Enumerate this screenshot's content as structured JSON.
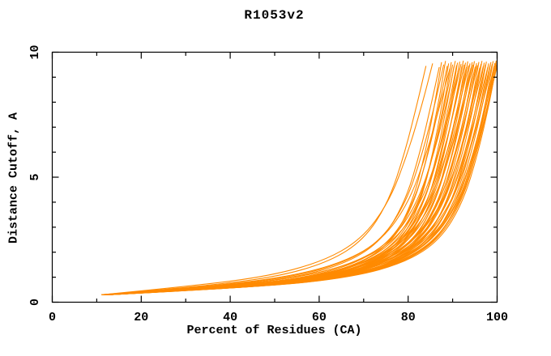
{
  "chart_data": {
    "type": "line",
    "title": "R1053v2",
    "xlabel": "Percent of Residues (CA)",
    "ylabel": "Distance Cutoff, A",
    "xlim": [
      0,
      100
    ],
    "ylim": [
      0,
      10
    ],
    "grid": false,
    "legend": "none",
    "frame_style": "box-with-inward-ticks",
    "x_major_ticks": [
      0,
      20,
      40,
      60,
      80,
      100
    ],
    "x_tick_labels": [
      "0",
      "20",
      "40",
      "60",
      "80",
      "100"
    ],
    "x_minor_ticks": [
      10,
      30,
      50,
      70,
      90
    ],
    "y_major_ticks": [
      0,
      5,
      10
    ],
    "y_tick_labels": [
      "0",
      "5",
      "10"
    ],
    "y_minor_ticks": [
      1,
      2,
      3,
      4,
      6,
      7,
      8,
      9
    ],
    "series_color": "#ff8a00",
    "series_description": "ensemble of ~54 unlabeled model curves: percent of CA residues under a distance cutoff; each starts near (11,0.3), stays below ~1.5 A until 60-85%, then rises steeply to ~9.5 A between 84% and 100%",
    "curve_format": [
      "x_start_percent",
      "x_end_percent",
      "y_top_cutoff_A",
      "shape_exponent"
    ],
    "curve_levels_y": [
      0.3,
      0.6,
      1.0,
      1.6,
      2.5,
      4.0,
      6.0,
      8.0
    ],
    "curve_level_fractions": [
      0.0,
      0.38,
      0.62,
      0.76,
      0.85,
      0.91,
      0.95,
      0.98
    ],
    "curves": [
      [
        11.0,
        84.0,
        9.45,
        1.3
      ],
      [
        11.3,
        85.5,
        9.55,
        1.5
      ],
      [
        12.0,
        87.0,
        9.4,
        1.15
      ],
      [
        11.6,
        87.5,
        9.6,
        0.95
      ],
      [
        12.3,
        88.0,
        9.5,
        1.25
      ],
      [
        11.1,
        88.4,
        9.65,
        1.0
      ],
      [
        12.8,
        88.8,
        9.45,
        1.1
      ],
      [
        11.9,
        89.1,
        9.55,
        0.9
      ],
      [
        12.5,
        89.4,
        9.35,
        1.35
      ],
      [
        11.4,
        89.7,
        9.6,
        1.0
      ],
      [
        12.1,
        90.0,
        9.5,
        1.08
      ],
      [
        13.0,
        90.3,
        9.42,
        0.95
      ],
      [
        11.7,
        90.6,
        9.65,
        1.2
      ],
      [
        12.4,
        90.9,
        9.48,
        1.02
      ],
      [
        11.2,
        91.1,
        9.58,
        0.92
      ],
      [
        12.9,
        91.4,
        9.38,
        1.12
      ],
      [
        11.8,
        91.6,
        9.62,
        1.0
      ],
      [
        12.2,
        91.9,
        9.52,
        1.25
      ],
      [
        13.2,
        92.1,
        9.44,
        0.97
      ],
      [
        11.5,
        92.4,
        9.66,
        1.05
      ],
      [
        12.6,
        92.6,
        9.5,
        1.15
      ],
      [
        11.9,
        92.9,
        9.58,
        0.93
      ],
      [
        12.3,
        93.1,
        9.4,
        1.06
      ],
      [
        13.1,
        93.4,
        9.63,
        1.0
      ],
      [
        11.6,
        93.6,
        9.47,
        1.18
      ],
      [
        12.7,
        93.9,
        9.55,
        0.95
      ],
      [
        12.0,
        94.1,
        9.36,
        1.1
      ],
      [
        11.3,
        94.4,
        9.6,
        1.02
      ],
      [
        12.8,
        94.6,
        9.5,
        1.22
      ],
      [
        12.2,
        94.9,
        9.64,
        0.98
      ],
      [
        13.0,
        95.1,
        9.42,
        1.08
      ],
      [
        11.7,
        95.4,
        9.56,
        1.0
      ],
      [
        12.4,
        95.6,
        9.48,
        1.14
      ],
      [
        11.9,
        95.9,
        9.61,
        0.94
      ],
      [
        12.6,
        96.1,
        9.38,
        1.05
      ],
      [
        13.2,
        96.4,
        9.53,
        1.12
      ],
      [
        11.4,
        96.6,
        9.65,
        1.0
      ],
      [
        12.1,
        96.9,
        9.45,
        1.2
      ],
      [
        12.9,
        97.1,
        9.58,
        0.96
      ],
      [
        11.6,
        97.4,
        9.5,
        1.07
      ],
      [
        12.3,
        97.6,
        9.62,
        1.0
      ],
      [
        13.1,
        97.9,
        9.4,
        1.15
      ],
      [
        11.8,
        98.1,
        9.55,
        0.98
      ],
      [
        12.5,
        98.4,
        9.47,
        1.09
      ],
      [
        12.0,
        98.6,
        9.6,
        1.0
      ],
      [
        12.7,
        98.9,
        9.52,
        1.18
      ],
      [
        11.5,
        99.1,
        9.64,
        0.95
      ],
      [
        13.0,
        99.3,
        9.44,
        1.05
      ],
      [
        12.2,
        99.5,
        9.57,
        1.0
      ],
      [
        11.9,
        99.7,
        9.49,
        1.12
      ],
      [
        12.6,
        99.8,
        9.66,
        0.99
      ],
      [
        12.3,
        100.0,
        9.55,
        1.04
      ],
      [
        11.7,
        100.0,
        9.62,
        0.96
      ],
      [
        12.9,
        100.0,
        9.45,
        1.1
      ]
    ]
  },
  "colors": {
    "curve": "#ff8a00",
    "axis": "#000000",
    "background": "#ffffff",
    "text": "#000000"
  }
}
